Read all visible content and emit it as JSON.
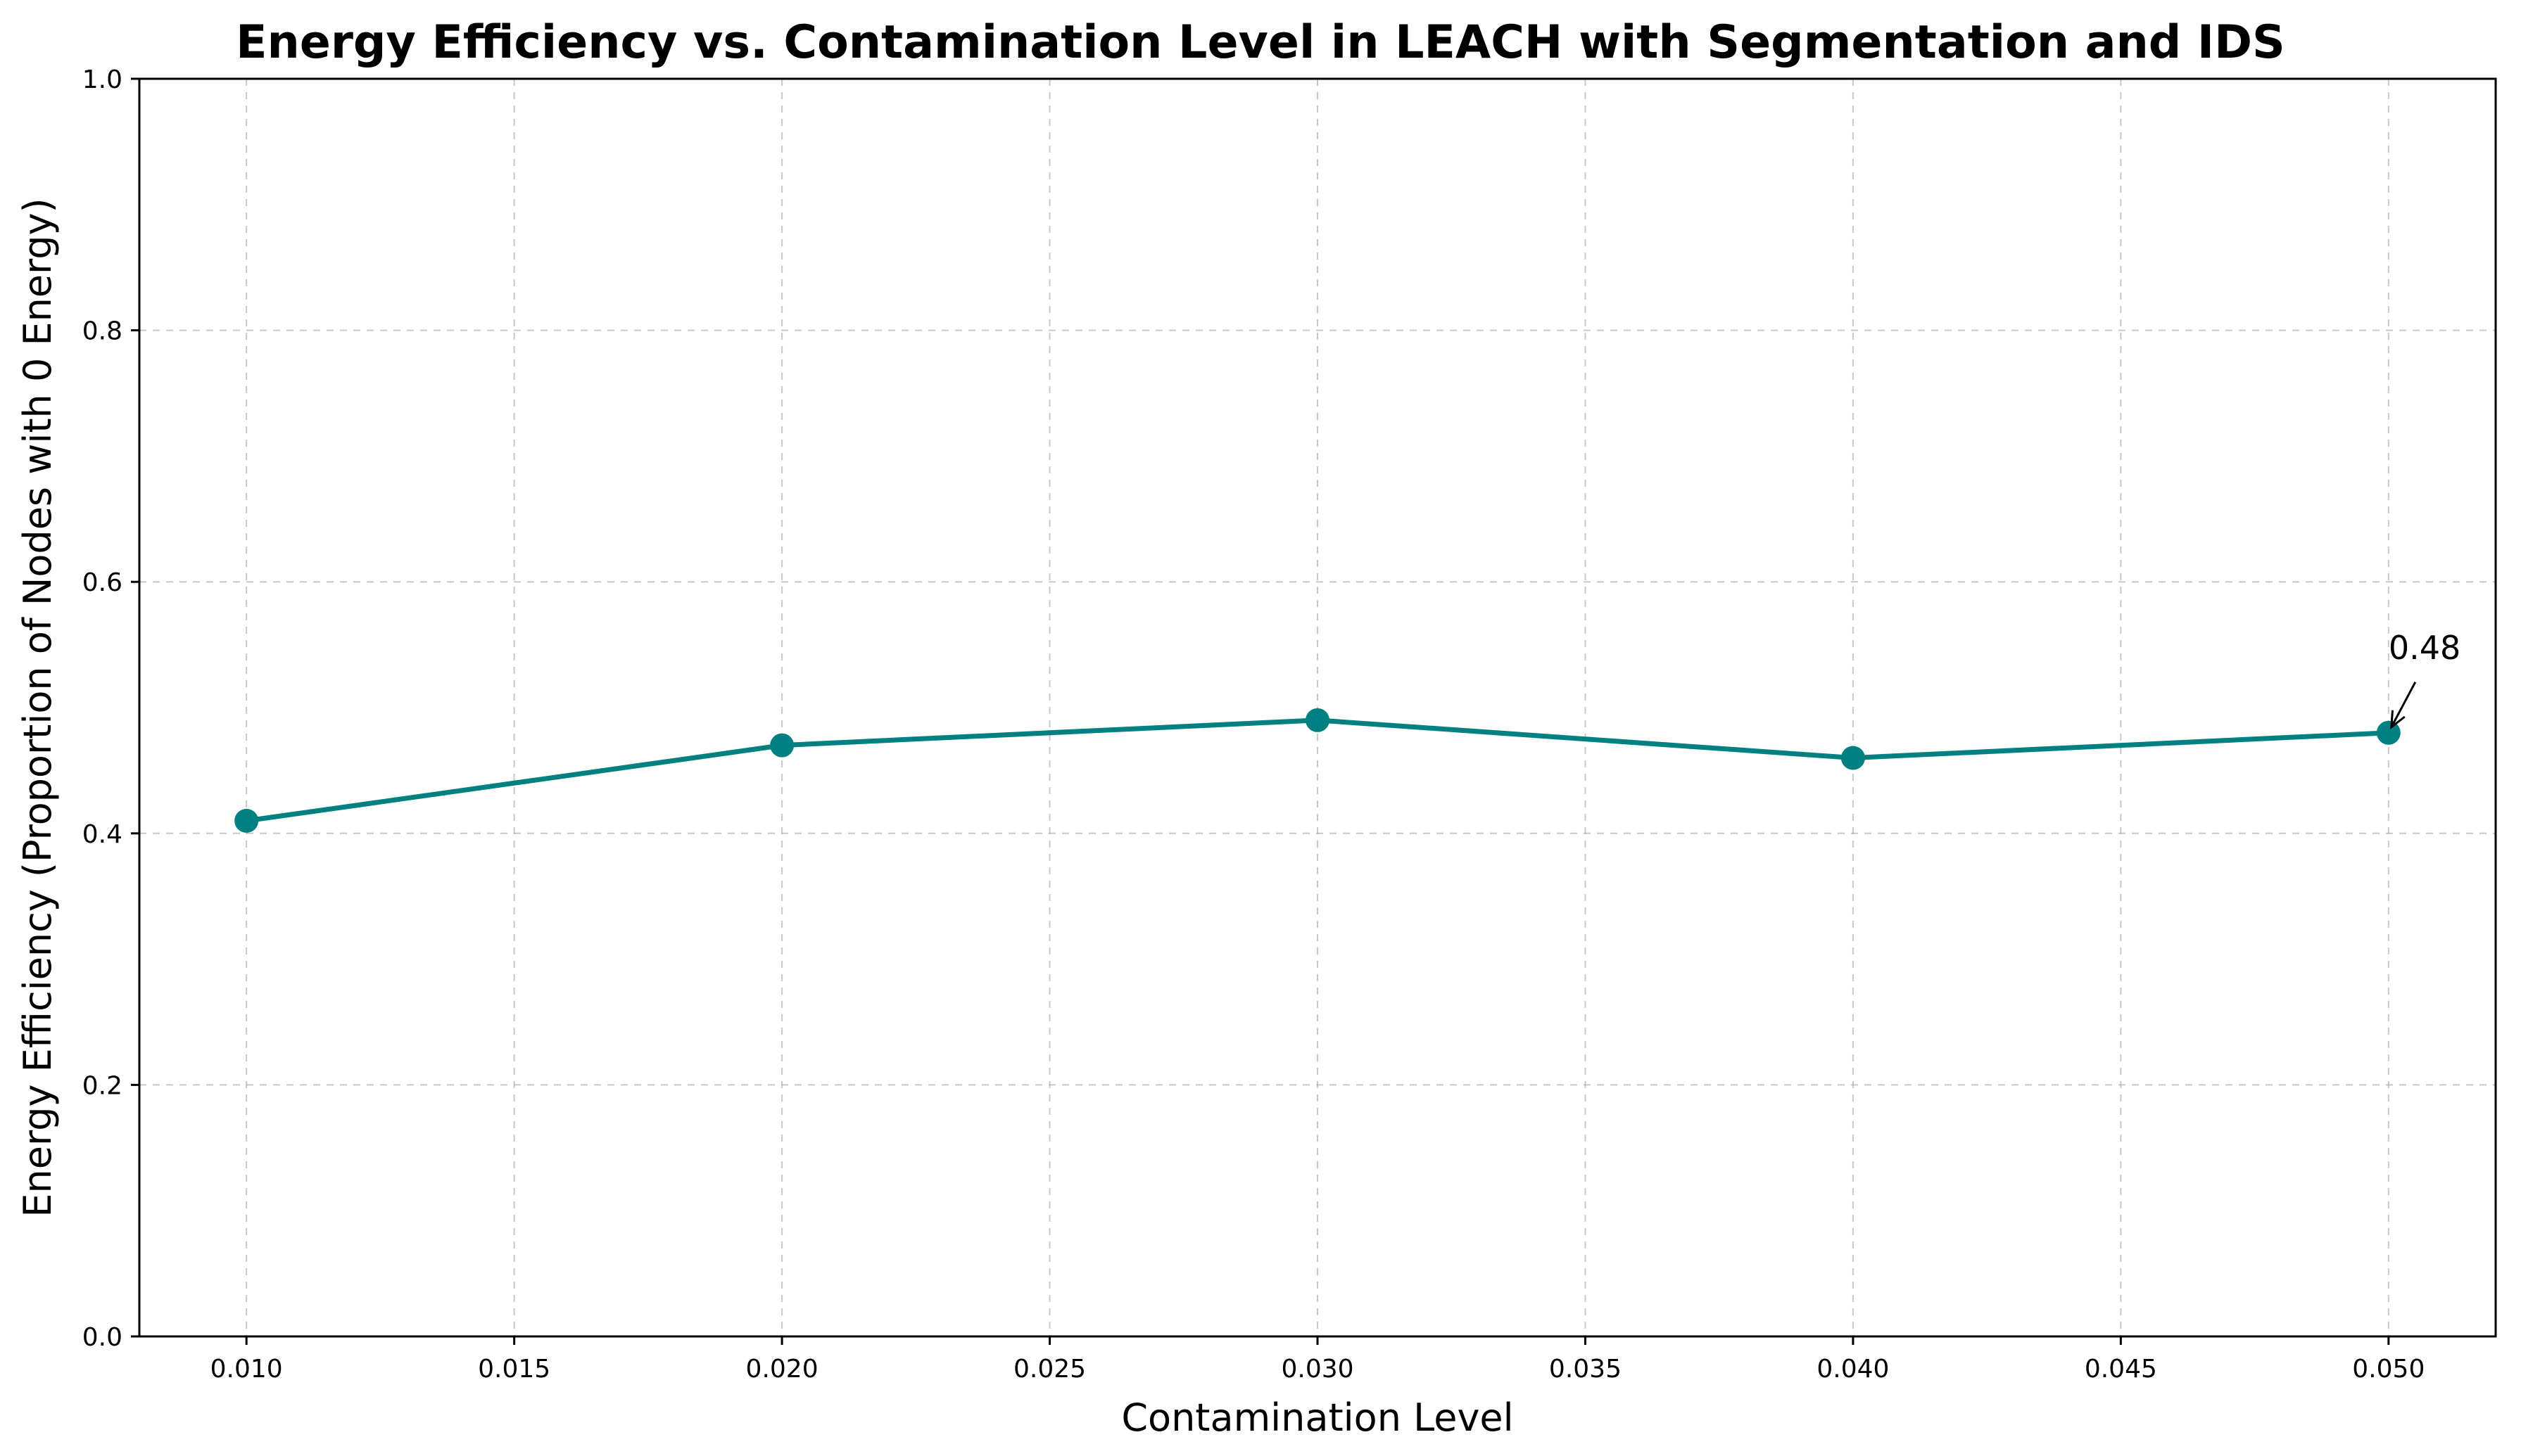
{
  "chart_data": {
    "type": "line",
    "title": "Energy Efficiency vs. Contamination Level in LEACH with Segmentation and IDS",
    "xlabel": "Contamination Level",
    "ylabel": "Energy Efficiency (Proportion of Nodes with 0 Energy)",
    "xlim": [
      0.008,
      0.052
    ],
    "ylim": [
      0.0,
      1.0
    ],
    "x_ticks": [
      0.01,
      0.015,
      0.02,
      0.025,
      0.03,
      0.035,
      0.04,
      0.045,
      0.05
    ],
    "x_tick_labels": [
      "0.010",
      "0.015",
      "0.020",
      "0.025",
      "0.030",
      "0.035",
      "0.040",
      "0.045",
      "0.050"
    ],
    "y_ticks": [
      0.0,
      0.2,
      0.4,
      0.6,
      0.8,
      1.0
    ],
    "y_tick_labels": [
      "0.0",
      "0.2",
      "0.4",
      "0.6",
      "0.8",
      "1.0"
    ],
    "grid": true,
    "series": [
      {
        "color": "#008080",
        "marker": "circle",
        "x": [
          0.01,
          0.02,
          0.03,
          0.04,
          0.05
        ],
        "y": [
          0.41,
          0.47,
          0.49,
          0.46,
          0.48
        ]
      }
    ],
    "annotations": [
      {
        "text": "0.48",
        "x": 0.05,
        "y": 0.48,
        "arrow": true
      }
    ]
  }
}
